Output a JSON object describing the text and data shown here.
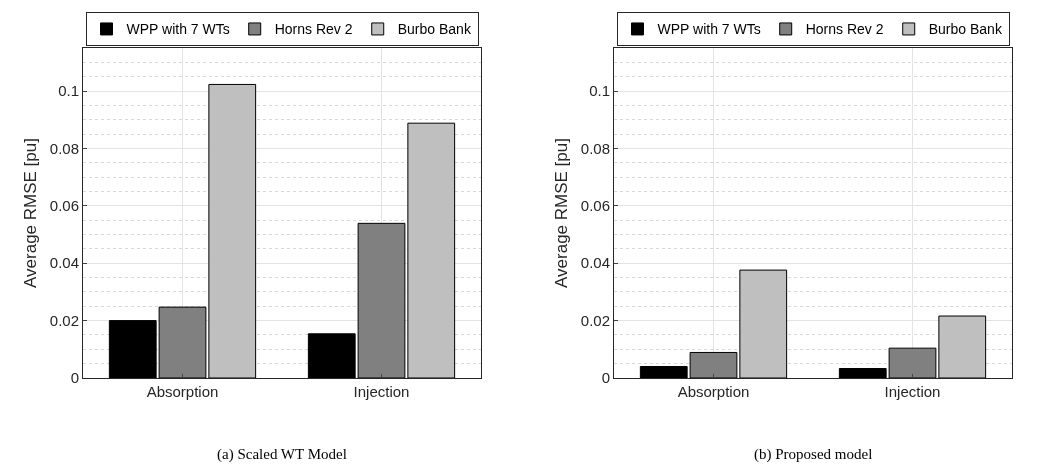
{
  "chart_data": [
    {
      "type": "bar",
      "ylabel": "Average RMSE [pu]",
      "categories": [
        "Absorption",
        "Injection"
      ],
      "series": [
        {
          "name": "WPP with 7 WTs",
          "color": "#000000",
          "values": [
            0.02,
            0.0154
          ]
        },
        {
          "name": "Horns Rev 2",
          "color": "#808080",
          "values": [
            0.0247,
            0.0539
          ]
        },
        {
          "name": "Burbo Bank",
          "color": "#bfbfbf",
          "values": [
            0.1023,
            0.0888
          ]
        }
      ],
      "ylim": [
        0,
        0.115
      ],
      "yticks": [
        0,
        0.02,
        0.04,
        0.06,
        0.08,
        0.1
      ],
      "grid": true,
      "legend": "top",
      "annotations": [
        "(a) Scaled WT Model"
      ]
    },
    {
      "type": "bar",
      "ylabel": "Average RMSE [pu]",
      "categories": [
        "Absorption",
        "Injection"
      ],
      "series": [
        {
          "name": "WPP with 7 WTs",
          "color": "#000000",
          "values": [
            0.004,
            0.0033
          ]
        },
        {
          "name": "Horns Rev 2",
          "color": "#808080",
          "values": [
            0.0089,
            0.0104
          ]
        },
        {
          "name": "Burbo Bank",
          "color": "#bfbfbf",
          "values": [
            0.0376,
            0.0216
          ]
        }
      ],
      "ylim": [
        0,
        0.115
      ],
      "yticks": [
        0,
        0.02,
        0.04,
        0.06,
        0.08,
        0.1
      ],
      "grid": true,
      "legend": "top",
      "annotations": [
        "(b) Proposed model"
      ]
    }
  ]
}
